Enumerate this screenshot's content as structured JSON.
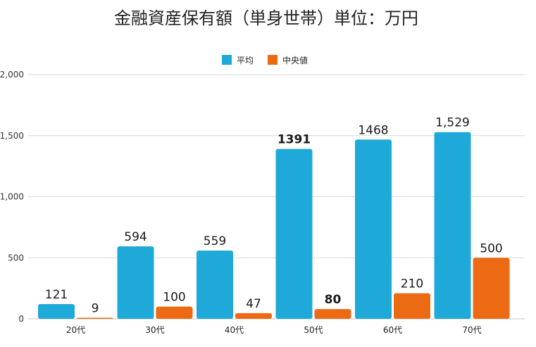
{
  "chart_data": {
    "type": "bar",
    "title": "金融資産保有額（単身世帯）単位：万円",
    "categories": [
      "20代",
      "30代",
      "40代",
      "50代",
      "60代",
      "70代"
    ],
    "series": [
      {
        "name": "平均",
        "color": "#1fa9d8",
        "values": [
          121,
          594,
          559,
          1391,
          1468,
          1529
        ],
        "labels": [
          "121",
          "594",
          "559",
          "1391",
          "1468",
          "1,529"
        ]
      },
      {
        "name": "中央値",
        "color": "#ed6a14",
        "values": [
          9,
          100,
          47,
          80,
          210,
          500
        ],
        "labels": [
          "9",
          "100",
          "47",
          "80",
          "210",
          "500"
        ]
      }
    ],
    "ylim": [
      0,
      2000
    ],
    "yticks": [
      0,
      500,
      1000,
      1500,
      2000
    ],
    "ytick_labels": [
      "0",
      "500",
      "1,000",
      "1,500",
      "2,000"
    ],
    "grid": true,
    "legend": "top-center",
    "bold_labels": [
      "1391",
      "80"
    ]
  }
}
